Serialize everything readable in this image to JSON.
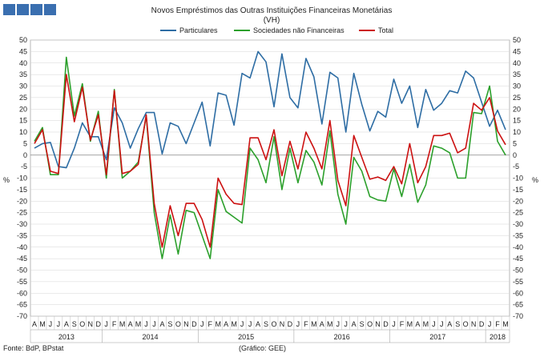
{
  "chart_data": {
    "type": "line",
    "title": "Novos Empréstimos das Outras Instituições Financeiras Monetárias",
    "subtitle": "(VH)",
    "ylabel_left": "%",
    "ylabel_right": "%",
    "ylim": [
      -70,
      50
    ],
    "yticks": [
      50,
      45,
      40,
      35,
      30,
      25,
      20,
      15,
      10,
      5,
      0,
      -5,
      -10,
      -15,
      -20,
      -25,
      -30,
      -35,
      -40,
      -45,
      -50,
      -55,
      -60,
      -65,
      -70
    ],
    "month_labels": [
      "A",
      "M",
      "J",
      "J",
      "A",
      "S",
      "O",
      "N",
      "D",
      "J",
      "F",
      "M",
      "A",
      "M",
      "J",
      "J",
      "A",
      "S",
      "O",
      "N",
      "D",
      "J",
      "F",
      "M",
      "A",
      "M",
      "J",
      "J",
      "A",
      "S",
      "O",
      "N",
      "D",
      "J",
      "F",
      "M",
      "A",
      "M",
      "J",
      "J",
      "A",
      "S",
      "O",
      "N",
      "D",
      "J",
      "F",
      "M",
      "A",
      "M",
      "J",
      "J",
      "A",
      "S",
      "O",
      "N",
      "D",
      "J",
      "F",
      "M"
    ],
    "years": [
      {
        "label": "2013",
        "start": 0,
        "end": 8
      },
      {
        "label": "2014",
        "start": 9,
        "end": 20
      },
      {
        "label": "2015",
        "start": 21,
        "end": 32
      },
      {
        "label": "2016",
        "start": 33,
        "end": 44
      },
      {
        "label": "2017",
        "start": 45,
        "end": 56
      },
      {
        "label": "2018",
        "start": 57,
        "end": 59
      }
    ],
    "series": [
      {
        "name": "Particulares",
        "color": "#2e6da4",
        "values": [
          3,
          5,
          5.5,
          -5,
          -5.5,
          3,
          14,
          8,
          8,
          -2,
          20.5,
          14,
          3,
          11.5,
          18.5,
          18.5,
          0.5,
          14,
          12.5,
          5,
          14,
          23,
          4,
          27,
          26,
          13,
          35.5,
          33.5,
          45,
          40.5,
          21,
          44,
          25,
          20.5,
          42,
          34,
          13.5,
          36,
          33.5,
          10,
          35.5,
          22,
          10.5,
          19,
          16.5,
          33,
          22.5,
          30,
          12,
          28.5,
          19.5,
          22.5,
          28,
          27,
          36.5,
          33.5,
          23,
          12.5,
          19.5,
          11
        ]
      },
      {
        "name": "Sociedades não Financeiras",
        "color": "#2ca02c",
        "values": [
          6,
          12,
          -8.5,
          -8.5,
          42.5,
          17,
          31,
          6,
          19,
          -10,
          28.5,
          -10,
          -7,
          -3,
          17,
          -25,
          -45,
          -26,
          -43,
          -24,
          -25,
          -35,
          -45,
          -15,
          -24.5,
          -27,
          -29.5,
          3,
          -2,
          -12,
          8,
          -15,
          3,
          -12,
          2,
          -3,
          -13,
          10.5,
          -17,
          -30,
          -1,
          -7,
          -18,
          -19.5,
          -20,
          -6,
          -18,
          -4,
          -20.5,
          -13,
          4,
          3,
          1,
          -10,
          -10,
          18.5,
          18,
          30,
          6,
          0
        ]
      },
      {
        "name": "Total",
        "color": "#cc1111",
        "values": [
          5,
          11,
          -7,
          -8,
          35,
          14.5,
          29.5,
          6.5,
          17.5,
          -8.5,
          28,
          -8,
          -7,
          -4,
          17.5,
          -21,
          -40,
          -22,
          -35,
          -21,
          -21,
          -28,
          -40,
          -10,
          -17,
          -21,
          -21.5,
          7.5,
          7.5,
          -2,
          11,
          -9,
          6,
          -6,
          10,
          3,
          -6,
          15,
          -11,
          -22,
          8.5,
          -1,
          -10.5,
          -9.5,
          -11,
          -5,
          -12.5,
          5,
          -12,
          -5,
          8.5,
          8.5,
          9.5,
          1,
          3,
          22.5,
          19.5,
          25,
          10.5,
          4.5
        ]
      }
    ]
  },
  "footer": {
    "source": "Fonte: BdP, BPstat",
    "credit": "(Gráfico: GEE)"
  }
}
